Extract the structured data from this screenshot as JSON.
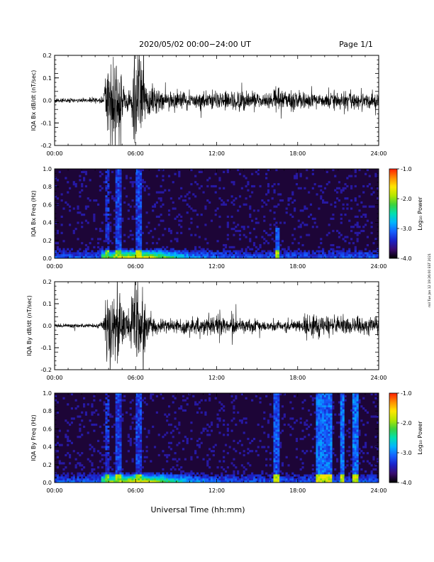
{
  "header": {
    "title": "2020/05/02  00:00−24:00 UT",
    "page": "Page 1/1"
  },
  "footer": {
    "xlabel": "Universal Time (hh:mm)",
    "side_note": "mil Tue Jan 12 19:26:00 EST 2021"
  },
  "colorbar": {
    "label": "Log₁₀ Power",
    "ticks": [
      "-1.0",
      "-2.0",
      "-3.0",
      "-4.0"
    ],
    "tick_values": [
      -1,
      -2,
      -3,
      -4
    ],
    "range": [
      -4,
      -1
    ],
    "colormap": [
      "#000000",
      "#3a0b6e",
      "#1a22c8",
      "#1560ff",
      "#00b4ff",
      "#00e0b0",
      "#3cd23c",
      "#b4e600",
      "#ffe600",
      "#ff8c00",
      "#ff1e00"
    ]
  },
  "chart_data": [
    {
      "type": "line",
      "name": "panel-bx-dbdt",
      "ylabel": "IQA Bx dB/dt (nT/sec)",
      "xlim": [
        "00:00",
        "24:00"
      ],
      "x_ticks": [
        "00:00",
        "06:00",
        "12:00",
        "18:00",
        "24:00"
      ],
      "ylim": [
        -0.2,
        0.2
      ],
      "y_ticks": [
        "0.2",
        "0.1",
        "0.0",
        "-0.1",
        "-0.2"
      ],
      "y_tick_values": [
        0.2,
        0.1,
        0.0,
        -0.1,
        -0.2
      ],
      "envelope": {
        "hours": [
          0,
          3,
          3.6,
          3.9,
          4.2,
          4.5,
          4.8,
          5.2,
          5.6,
          5.9,
          6.2,
          6.5,
          6.8,
          7.2,
          7.6,
          8,
          9,
          10,
          11,
          12,
          13,
          14,
          15,
          16,
          16.5,
          17,
          18,
          19,
          20,
          21,
          22,
          23,
          24
        ],
        "amp": [
          0.01,
          0.012,
          0.02,
          0.15,
          0.2,
          0.18,
          0.2,
          0.06,
          0.08,
          0.2,
          0.2,
          0.2,
          0.09,
          0.07,
          0.05,
          0.05,
          0.045,
          0.04,
          0.04,
          0.045,
          0.04,
          0.045,
          0.04,
          0.04,
          0.07,
          0.04,
          0.04,
          0.04,
          0.035,
          0.04,
          0.04,
          0.04,
          0.045
        ]
      }
    },
    {
      "type": "heatmap",
      "name": "panel-bx-spectrogram",
      "ylabel": "IQA Bx Freq (Hz)",
      "xlim": [
        "00:00",
        "24:00"
      ],
      "x_ticks": [
        "00:00",
        "06:00",
        "12:00",
        "18:00",
        "24:00"
      ],
      "ylim": [
        0.0,
        1.0
      ],
      "y_ticks": [
        "1.0",
        "0.8",
        "0.6",
        "0.4",
        "0.2",
        "0.0"
      ],
      "y_tick_values": [
        1.0,
        0.8,
        0.6,
        0.4,
        0.2,
        0.0
      ],
      "zlim": [
        -4,
        -1
      ],
      "features": [
        {
          "t0": 3.7,
          "t1": 4.1,
          "fmax": 1.0,
          "level": -3.4
        },
        {
          "t0": 4.5,
          "t1": 4.9,
          "fmax": 1.0,
          "level": -3.3
        },
        {
          "t0": 6.0,
          "t1": 6.5,
          "fmax": 1.0,
          "level": -3.3
        },
        {
          "t0": 16.3,
          "t1": 16.6,
          "fmax": 0.35,
          "level": -3.2
        }
      ]
    },
    {
      "type": "line",
      "name": "panel-by-dbdt",
      "ylabel": "IQA By dB/dt (nT/sec)",
      "xlim": [
        "00:00",
        "24:00"
      ],
      "x_ticks": [
        "00:00",
        "06:00",
        "12:00",
        "18:00",
        "24:00"
      ],
      "ylim": [
        -0.2,
        0.2
      ],
      "y_ticks": [
        "0.2",
        "0.1",
        "0.0",
        "-0.1",
        "-0.2"
      ],
      "y_tick_values": [
        0.2,
        0.1,
        0.0,
        -0.1,
        -0.2
      ],
      "envelope": {
        "hours": [
          0,
          3,
          3.6,
          3.9,
          4.2,
          4.5,
          4.8,
          5.2,
          5.6,
          5.9,
          6.2,
          6.5,
          6.8,
          7.2,
          7.6,
          8,
          9,
          10,
          11,
          12,
          13,
          14,
          15,
          16,
          17,
          18,
          19,
          20,
          21,
          22,
          23,
          24
        ],
        "amp": [
          0.008,
          0.01,
          0.02,
          0.18,
          0.2,
          0.17,
          0.2,
          0.06,
          0.08,
          0.2,
          0.2,
          0.2,
          0.07,
          0.05,
          0.035,
          0.03,
          0.03,
          0.04,
          0.045,
          0.05,
          0.04,
          0.035,
          0.03,
          0.025,
          0.03,
          0.03,
          0.07,
          0.05,
          0.05,
          0.04,
          0.04,
          0.045
        ]
      }
    },
    {
      "type": "heatmap",
      "name": "panel-by-spectrogram",
      "ylabel": "IQA By Freq (Hz)",
      "xlim": [
        "00:00",
        "24:00"
      ],
      "x_ticks": [
        "00:00",
        "06:00",
        "12:00",
        "18:00",
        "24:00"
      ],
      "ylim": [
        0.0,
        1.0
      ],
      "y_ticks": [
        "1.0",
        "0.8",
        "0.6",
        "0.4",
        "0.2",
        "0.0"
      ],
      "y_tick_values": [
        1.0,
        0.8,
        0.6,
        0.4,
        0.2,
        0.0
      ],
      "zlim": [
        -4,
        -1
      ],
      "features": [
        {
          "t0": 3.7,
          "t1": 4.1,
          "fmax": 1.0,
          "level": -3.4
        },
        {
          "t0": 4.5,
          "t1": 4.9,
          "fmax": 1.0,
          "level": -3.3
        },
        {
          "t0": 6.0,
          "t1": 6.5,
          "fmax": 1.0,
          "level": -3.3
        },
        {
          "t0": 16.2,
          "t1": 16.6,
          "fmax": 1.0,
          "level": -3.2
        },
        {
          "t0": 19.4,
          "t1": 20.6,
          "fmax": 1.0,
          "level": -3.1
        },
        {
          "t0": 21.2,
          "t1": 21.5,
          "fmax": 1.0,
          "level": -3.1
        },
        {
          "t0": 22.1,
          "t1": 22.5,
          "fmax": 1.0,
          "level": -3.1
        }
      ]
    }
  ]
}
